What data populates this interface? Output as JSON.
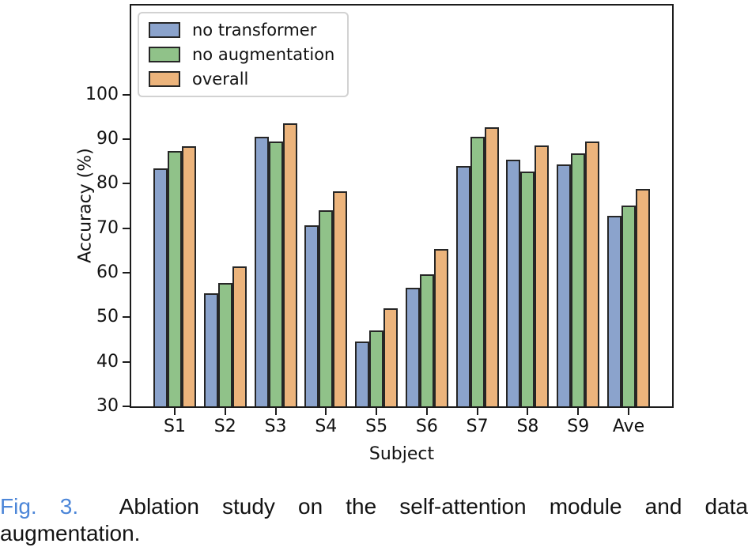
{
  "caption": {
    "fig_label": "Fig. 3.",
    "line1": "Ablation study on the self-attention module and data",
    "line2": "augmentation."
  },
  "colors": {
    "caption_fig_label": "#4c86d8",
    "axis_spine": "#1c1c1c",
    "bar_edge": "#262626",
    "legend_border": "#d2d2d2"
  },
  "chart_data": {
    "type": "bar",
    "title": "",
    "xlabel": "Subject",
    "ylabel": "Accuracy (%)",
    "categories": [
      "S1",
      "S2",
      "S3",
      "S4",
      "S5",
      "S6",
      "S7",
      "S8",
      "S9",
      "Ave"
    ],
    "series": [
      {
        "name": "no transformer",
        "color": "#8ba3cc",
        "values": [
          83.5,
          55.4,
          90.6,
          70.7,
          44.5,
          56.6,
          84.0,
          85.3,
          84.4,
          72.7
        ]
      },
      {
        "name": "no augmentation",
        "color": "#90c289",
        "values": [
          87.3,
          57.7,
          89.4,
          74.1,
          47.1,
          59.7,
          90.6,
          82.8,
          86.8,
          75.1
        ]
      },
      {
        "name": "overall",
        "color": "#ecb47c",
        "values": [
          88.4,
          61.5,
          93.6,
          78.2,
          52.0,
          65.3,
          92.7,
          88.5,
          89.4,
          78.8
        ]
      }
    ],
    "yticks": [
      30,
      40,
      50,
      60,
      70,
      80,
      90,
      100
    ],
    "ylim": [
      30,
      120
    ],
    "grid": false,
    "legend_position": "upper left"
  }
}
